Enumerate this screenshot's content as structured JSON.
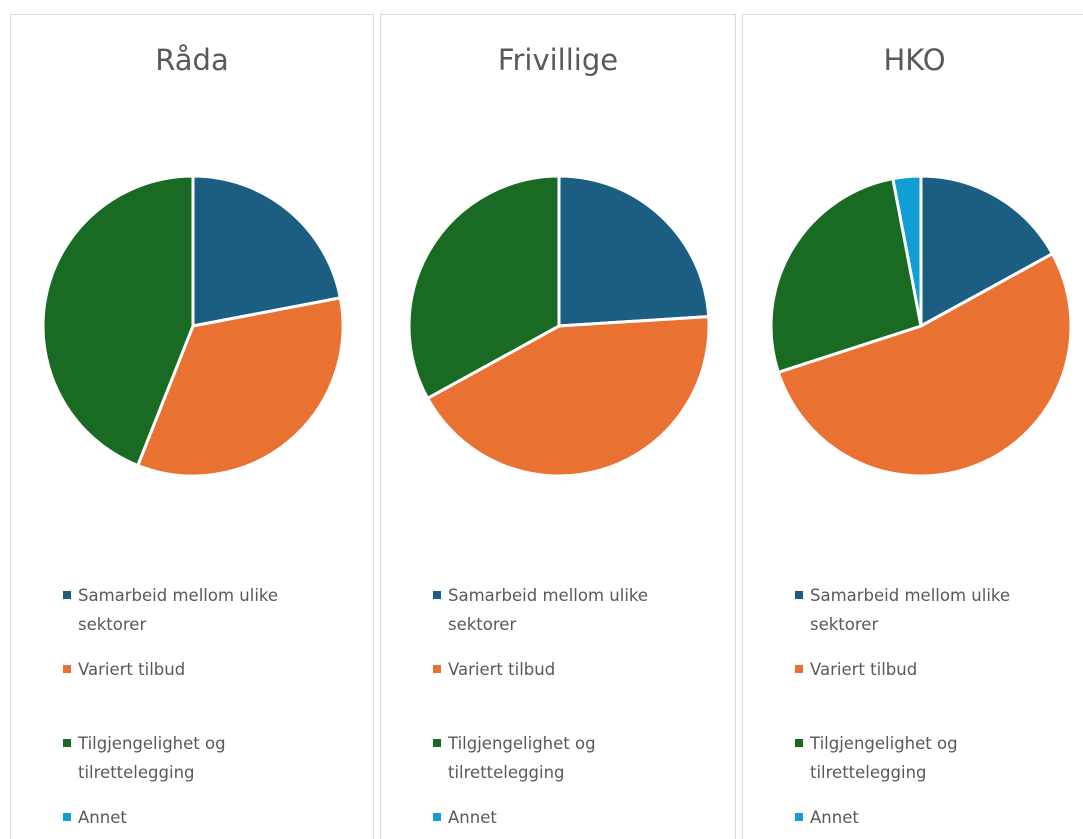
{
  "chart_data": [
    {
      "type": "pie",
      "title": "Råda",
      "categories": [
        "Samarbeid mellom ulike sektorer",
        "Variert tilbud",
        "Tilgjengelighet og tilrettelegging",
        "Annet"
      ],
      "values": [
        22,
        34,
        44,
        0
      ],
      "colors": [
        "#1b5e82",
        "#e97132",
        "#196b24",
        "#0f9ed5"
      ]
    },
    {
      "type": "pie",
      "title": "Frivillige",
      "categories": [
        "Samarbeid mellom ulike sektorer",
        "Variert tilbud",
        "Tilgjengelighet og tilrettelegging",
        "Annet"
      ],
      "values": [
        24,
        43,
        33,
        0
      ],
      "colors": [
        "#1b5e82",
        "#e97132",
        "#196b24",
        "#0f9ed5"
      ]
    },
    {
      "type": "pie",
      "title": "HKO",
      "categories": [
        "Samarbeid mellom ulike sektorer",
        "Variert tilbud",
        "Tilgjengelighet og tilrettelegging",
        "Annet"
      ],
      "values": [
        17,
        53,
        27,
        3
      ],
      "colors": [
        "#1b5e82",
        "#e97132",
        "#196b24",
        "#0f9ed5"
      ]
    }
  ]
}
